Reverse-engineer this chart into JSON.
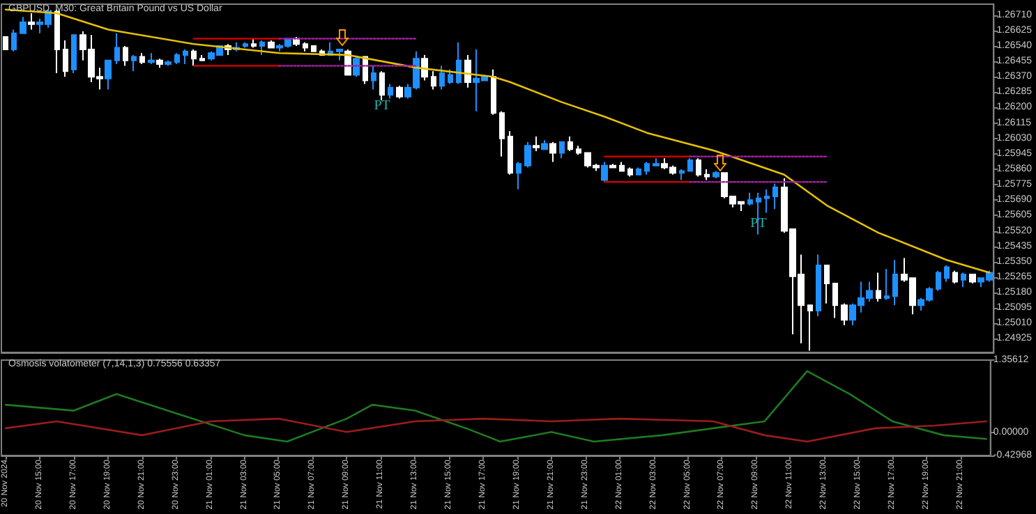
{
  "chart_data": [
    {
      "type": "candlestick",
      "title": "GBPUSD, M30: Great Britain Pound vs US Dollar",
      "x": [
        "2024-11-20T13:00",
        "2024-11-20T13:30",
        "2024-11-20T14:00",
        "2024-11-20T14:30",
        "2024-11-20T15:00",
        "2024-11-20T15:30",
        "2024-11-20T16:00",
        "2024-11-20T16:30",
        "2024-11-20T17:00",
        "2024-11-20T17:30",
        "2024-11-20T18:00",
        "2024-11-20T18:30",
        "2024-11-20T19:00",
        "2024-11-20T19:30",
        "2024-11-20T20:00",
        "2024-11-20T20:30",
        "2024-11-20T21:00",
        "2024-11-20T21:30",
        "2024-11-20T22:00",
        "2024-11-20T22:30",
        "2024-11-20T23:00",
        "2024-11-20T23:30",
        "2024-11-21T00:00",
        "2024-11-21T00:30",
        "2024-11-21T01:00",
        "2024-11-21T01:30",
        "2024-11-21T02:00",
        "2024-11-21T02:30",
        "2024-11-21T03:00",
        "2024-11-21T03:30",
        "2024-11-21T04:00",
        "2024-11-21T04:30",
        "2024-11-21T05:00",
        "2024-11-21T05:30",
        "2024-11-21T06:00",
        "2024-11-21T06:30",
        "2024-11-21T07:00",
        "2024-11-21T07:30",
        "2024-11-21T08:00",
        "2024-11-21T08:30",
        "2024-11-21T09:00",
        "2024-11-21T09:30",
        "2024-11-21T10:00",
        "2024-11-21T10:30",
        "2024-11-21T11:00",
        "2024-11-21T11:30",
        "2024-11-21T12:00",
        "2024-11-21T12:30",
        "2024-11-21T13:00",
        "2024-11-21T13:30",
        "2024-11-21T14:00",
        "2024-11-21T14:30",
        "2024-11-21T15:00",
        "2024-11-21T15:30",
        "2024-11-21T16:00",
        "2024-11-21T16:30",
        "2024-11-21T17:00",
        "2024-11-21T17:30",
        "2024-11-21T18:00",
        "2024-11-21T18:30",
        "2024-11-21T19:00",
        "2024-11-21T19:30",
        "2024-11-21T20:00",
        "2024-11-21T20:30",
        "2024-11-21T21:00",
        "2024-11-21T21:30",
        "2024-11-21T22:00",
        "2024-11-21T22:30",
        "2024-11-21T23:00",
        "2024-11-21T23:30",
        "2024-11-22T00:00",
        "2024-11-22T00:30",
        "2024-11-22T01:00",
        "2024-11-22T01:30",
        "2024-11-22T02:00",
        "2024-11-22T02:30",
        "2024-11-22T03:00",
        "2024-11-22T03:30",
        "2024-11-22T04:00",
        "2024-11-22T04:30",
        "2024-11-22T05:00",
        "2024-11-22T05:30",
        "2024-11-22T06:00",
        "2024-11-22T06:30",
        "2024-11-22T07:00",
        "2024-11-22T07:30",
        "2024-11-22T08:00",
        "2024-11-22T08:30",
        "2024-11-22T09:00",
        "2024-11-22T09:30",
        "2024-11-22T10:00",
        "2024-11-22T10:30",
        "2024-11-22T11:00",
        "2024-11-22T11:30",
        "2024-11-22T12:00",
        "2024-11-22T12:30",
        "2024-11-22T13:00",
        "2024-11-22T13:30",
        "2024-11-22T14:00",
        "2024-11-22T14:30",
        "2024-11-22T15:00",
        "2024-11-22T15:30",
        "2024-11-22T16:00",
        "2024-11-22T16:30",
        "2024-11-22T17:00",
        "2024-11-22T17:30",
        "2024-11-22T18:00",
        "2024-11-22T18:30",
        "2024-11-22T19:00",
        "2024-11-22T19:30",
        "2024-11-22T20:00",
        "2024-11-22T20:30",
        "2024-11-22T21:00",
        "2024-11-22T21:30",
        "2024-11-22T22:00",
        "2024-11-22T22:30"
      ],
      "ohlc": [
        [
          1.2659,
          1.2659,
          1.2652,
          1.2652
        ],
        [
          1.2652,
          1.2663,
          1.2651,
          1.2661
        ],
        [
          1.2661,
          1.267,
          1.2661,
          1.2667
        ],
        [
          1.2667,
          1.2672,
          1.2663,
          1.2666
        ],
        [
          1.2666,
          1.2669,
          1.2661,
          1.2667
        ],
        [
          1.2666,
          1.2674,
          1.2664,
          1.2673
        ],
        [
          1.2673,
          1.2674,
          1.2639,
          1.2652
        ],
        [
          1.2652,
          1.2657,
          1.2637,
          1.264
        ],
        [
          1.2641,
          1.266,
          1.2639,
          1.266
        ],
        [
          1.266,
          1.2662,
          1.2646,
          1.2652
        ],
        [
          1.2652,
          1.266,
          1.2634,
          1.2637
        ],
        [
          1.2637,
          1.2642,
          1.263,
          1.2636
        ],
        [
          1.2636,
          1.2646,
          1.263,
          1.2646
        ],
        [
          1.2646,
          1.2661,
          1.2644,
          1.2653
        ],
        [
          1.2653,
          1.2654,
          1.2643,
          1.2646
        ],
        [
          1.2646,
          1.2649,
          1.264,
          1.2648
        ],
        [
          1.2648,
          1.265,
          1.2644,
          1.2645
        ],
        [
          1.2645,
          1.265,
          1.2644,
          1.2646
        ],
        [
          1.2646,
          1.2647,
          1.2642,
          1.2644
        ],
        [
          1.2644,
          1.2646,
          1.2643,
          1.2645
        ],
        [
          1.2645,
          1.265,
          1.2644,
          1.2649
        ],
        [
          1.2649,
          1.2652,
          1.2644,
          1.2651
        ],
        [
          1.2651,
          1.2652,
          1.2643,
          1.2647
        ],
        [
          1.2647,
          1.2649,
          1.2646,
          1.2646
        ],
        [
          1.2647,
          1.2651,
          1.2646,
          1.265
        ],
        [
          1.2649,
          1.2654,
          1.2649,
          1.2654
        ],
        [
          1.2654,
          1.2655,
          1.2649,
          1.2652
        ],
        [
          1.2652,
          1.2656,
          1.2651,
          1.2653
        ],
        [
          1.2654,
          1.2656,
          1.2653,
          1.2655
        ],
        [
          1.2655,
          1.2658,
          1.2653,
          1.2654
        ],
        [
          1.2654,
          1.2657,
          1.2649,
          1.2656
        ],
        [
          1.2656,
          1.2657,
          1.2653,
          1.2653
        ],
        [
          1.2653,
          1.2655,
          1.2651,
          1.2654
        ],
        [
          1.2654,
          1.2658,
          1.2653,
          1.2658
        ],
        [
          1.2658,
          1.2659,
          1.2654,
          1.2655
        ],
        [
          1.2655,
          1.2656,
          1.2651,
          1.2653
        ],
        [
          1.2654,
          1.2654,
          1.2651,
          1.2651
        ],
        [
          1.2651,
          1.2652,
          1.2649,
          1.2649
        ],
        [
          1.2649,
          1.2656,
          1.2649,
          1.2651
        ],
        [
          1.2651,
          1.2652,
          1.2646,
          1.2652
        ],
        [
          1.2651,
          1.2652,
          1.2638,
          1.2638
        ],
        [
          1.2638,
          1.2648,
          1.2637,
          1.2647
        ],
        [
          1.2648,
          1.2648,
          1.2633,
          1.2635
        ],
        [
          1.2635,
          1.2643,
          1.263,
          1.2639
        ],
        [
          1.2639,
          1.264,
          1.2624,
          1.2627
        ],
        [
          1.2627,
          1.2633,
          1.2625,
          1.2631
        ],
        [
          1.2631,
          1.2632,
          1.2625,
          1.2626
        ],
        [
          1.2626,
          1.2633,
          1.2625,
          1.2631
        ],
        [
          1.2631,
          1.2651,
          1.263,
          1.2647
        ],
        [
          1.2647,
          1.2649,
          1.2635,
          1.2637
        ],
        [
          1.2637,
          1.264,
          1.263,
          1.2632
        ],
        [
          1.2632,
          1.2643,
          1.263,
          1.2639
        ],
        [
          1.2634,
          1.2641,
          1.2633,
          1.2638
        ],
        [
          1.2634,
          1.2656,
          1.2633,
          1.2646
        ],
        [
          1.2646,
          1.2649,
          1.2631,
          1.2634
        ],
        [
          1.2634,
          1.2652,
          1.2618,
          1.2636
        ],
        [
          1.2635,
          1.2638,
          1.2635,
          1.2637
        ],
        [
          1.2637,
          1.2641,
          1.2616,
          1.2617
        ],
        [
          1.2617,
          1.2618,
          1.2593,
          1.2603
        ],
        [
          1.2604,
          1.2607,
          1.2583,
          1.2584
        ],
        [
          1.2584,
          1.259,
          1.2575,
          1.2589
        ],
        [
          1.2588,
          1.2601,
          1.2587,
          1.2599
        ],
        [
          1.2599,
          1.2604,
          1.2596,
          1.2598
        ],
        [
          1.2597,
          1.2602,
          1.2597,
          1.26
        ],
        [
          1.26,
          1.2601,
          1.259,
          1.2595
        ],
        [
          1.2595,
          1.2601,
          1.2592,
          1.2601
        ],
        [
          1.2601,
          1.2604,
          1.2596,
          1.2597
        ],
        [
          1.2597,
          1.2599,
          1.2594,
          1.2595
        ],
        [
          1.2595,
          1.2595,
          1.2587,
          1.2588
        ],
        [
          1.2588,
          1.2589,
          1.2585,
          1.2587
        ],
        [
          1.258,
          1.259,
          1.2579,
          1.2588
        ],
        [
          1.2588,
          1.2589,
          1.2587,
          1.2587
        ],
        [
          1.2588,
          1.259,
          1.2585,
          1.2585
        ],
        [
          1.2586,
          1.2587,
          1.2582,
          1.2583
        ],
        [
          1.2583,
          1.2587,
          1.2583,
          1.2586
        ],
        [
          1.2585,
          1.259,
          1.2583,
          1.2589
        ],
        [
          1.2588,
          1.2592,
          1.2588,
          1.2589
        ],
        [
          1.2589,
          1.2592,
          1.2586,
          1.2587
        ],
        [
          1.2587,
          1.2588,
          1.2583,
          1.2584
        ],
        [
          1.2584,
          1.2586,
          1.258,
          1.2585
        ],
        [
          1.2585,
          1.2592,
          1.2585,
          1.2591
        ],
        [
          1.2591,
          1.2592,
          1.2582,
          1.2583
        ],
        [
          1.2583,
          1.2586,
          1.258,
          1.2582
        ],
        [
          1.2582,
          1.2585,
          1.2581,
          1.2584
        ],
        [
          1.2584,
          1.2584,
          1.257,
          1.2571
        ],
        [
          1.2571,
          1.2571,
          1.2565,
          1.2567
        ],
        [
          1.2568,
          1.2568,
          1.2563,
          1.2567
        ],
        [
          1.2567,
          1.2573,
          1.2566,
          1.2569
        ],
        [
          1.2568,
          1.2573,
          1.255,
          1.257
        ],
        [
          1.257,
          1.2575,
          1.2562,
          1.2571
        ],
        [
          1.2571,
          1.2578,
          1.2564,
          1.2576
        ],
        [
          1.2576,
          1.2581,
          1.2551,
          1.2552
        ],
        [
          1.2553,
          1.2553,
          1.2495,
          1.2527
        ],
        [
          1.2528,
          1.2539,
          1.249,
          1.2511
        ],
        [
          1.2511,
          1.2511,
          1.2486,
          1.2508
        ],
        [
          1.2508,
          1.2539,
          1.2505,
          1.2533
        ],
        [
          1.2533,
          1.2533,
          1.2512,
          1.2523
        ],
        [
          1.2523,
          1.2523,
          1.2504,
          1.2511
        ],
        [
          1.2511,
          1.2512,
          1.25,
          1.2503
        ],
        [
          1.2503,
          1.2512,
          1.25,
          1.2511
        ],
        [
          1.2511,
          1.2524,
          1.2507,
          1.2515
        ],
        [
          1.2515,
          1.2524,
          1.2513,
          1.2519
        ],
        [
          1.2519,
          1.2529,
          1.2513,
          1.2515
        ],
        [
          1.2515,
          1.2531,
          1.2514,
          1.2516
        ],
        [
          1.2516,
          1.2536,
          1.2511,
          1.2528
        ],
        [
          1.2528,
          1.2537,
          1.2524,
          1.2525
        ],
        [
          1.2526,
          1.2526,
          1.2506,
          1.2511
        ],
        [
          1.2511,
          1.2515,
          1.2508,
          1.2514
        ],
        [
          1.2514,
          1.2521,
          1.2513,
          1.252
        ],
        [
          1.252,
          1.253,
          1.2519,
          1.2529
        ],
        [
          1.2526,
          1.2533,
          1.2524,
          1.2532
        ],
        [
          1.2529,
          1.253,
          1.2523,
          1.2524
        ],
        [
          1.2525,
          1.2529,
          1.2521,
          1.2528
        ],
        [
          1.2528,
          1.2528,
          1.2523,
          1.2524
        ],
        [
          1.2524,
          1.2526,
          1.2521,
          1.2526
        ],
        [
          1.2525,
          1.253,
          1.2524,
          1.2529
        ]
      ],
      "colors": [
        "#ffffff",
        "#1e90ff",
        "#1e90ff",
        "#ffffff",
        "#1e90ff",
        "#1e90ff",
        "#ffffff",
        "#ffffff",
        "#1e90ff",
        "#ffffff",
        "#ffffff",
        "#ffffff",
        "#1e90ff",
        "#1e90ff",
        "#ffffff",
        "#1e90ff",
        "#ffffff",
        "#1e90ff",
        "#ffffff",
        "#1e90ff",
        "#1e90ff",
        "#1e90ff",
        "#ffffff",
        "#ffffff",
        "#1e90ff",
        "#1e90ff",
        "#ffffff",
        "#1e90ff",
        "#1e90ff",
        "#ffffff",
        "#1e90ff",
        "#ffffff",
        "#1e90ff",
        "#1e90ff",
        "#ffffff",
        "#ffffff",
        "#ffffff",
        "#ffffff",
        "#1e90ff",
        "#1e90ff",
        "#ffffff",
        "#1e90ff",
        "#ffffff",
        "#1e90ff",
        "#ffffff",
        "#1e90ff",
        "#ffffff",
        "#1e90ff",
        "#1e90ff",
        "#ffffff",
        "#ffffff",
        "#1e90ff",
        "#1e90ff",
        "#1e90ff",
        "#ffffff",
        "#1e90ff",
        "#1e90ff",
        "#ffffff",
        "#ffffff",
        "#ffffff",
        "#1e90ff",
        "#1e90ff",
        "#ffffff",
        "#1e90ff",
        "#ffffff",
        "#1e90ff",
        "#ffffff",
        "#ffffff",
        "#ffffff",
        "#ffffff",
        "#1e90ff",
        "#ffffff",
        "#ffffff",
        "#ffffff",
        "#1e90ff",
        "#1e90ff",
        "#1e90ff",
        "#ffffff",
        "#ffffff",
        "#1e90ff",
        "#1e90ff",
        "#ffffff",
        "#ffffff",
        "#1e90ff",
        "#ffffff",
        "#ffffff",
        "#ffffff",
        "#1e90ff",
        "#1e90ff",
        "#1e90ff",
        "#1e90ff",
        "#ffffff",
        "#ffffff",
        "#ffffff",
        "#ffffff",
        "#1e90ff",
        "#ffffff",
        "#ffffff",
        "#ffffff",
        "#1e90ff",
        "#1e90ff",
        "#1e90ff",
        "#ffffff",
        "#1e90ff",
        "#1e90ff",
        "#ffffff",
        "#ffffff",
        "#1e90ff",
        "#1e90ff",
        "#1e90ff",
        "#1e90ff",
        "#ffffff",
        "#1e90ff",
        "#ffffff",
        "#1e90ff",
        "#1e90ff"
      ],
      "series": [
        {
          "type": "line",
          "color": "#e6c000",
          "x": [
            "2024-11-20T13:00",
            "2024-11-20T16:00",
            "2024-11-20T19:00",
            "2024-11-21T00:00",
            "2024-11-21T05:00",
            "2024-11-21T09:00",
            "2024-11-21T13:00",
            "2024-11-21T17:30",
            "2024-11-21T18:30",
            "2024-11-21T21:30",
            "2024-11-22T00:00",
            "2024-11-22T02:30",
            "2024-11-22T06:30",
            "2024-11-22T10:30",
            "2024-11-22T13:00",
            "2024-11-22T16:00",
            "2024-11-22T20:00",
            "2024-11-22T22:30"
          ],
          "values": [
            1.2674,
            1.2672,
            1.2663,
            1.2655,
            1.265,
            1.2649,
            1.2642,
            1.2637,
            1.2634,
            1.2623,
            1.2615,
            1.2606,
            1.2596,
            1.2583,
            1.2566,
            1.2551,
            1.2536,
            1.2529
          ]
        },
        {
          "type": "line",
          "color": "#cc0000",
          "x": [
            "2024-11-21T00:00",
            "2024-11-21T05:00"
          ],
          "values": [
            1.2658,
            1.2658
          ]
        },
        {
          "type": "line",
          "color": "#cc0000",
          "x": [
            "2024-11-21T00:00",
            "2024-11-21T05:00"
          ],
          "values": [
            1.2643,
            1.2643
          ]
        },
        {
          "type": "line",
          "color": "#a020a0",
          "line_style": "dotted",
          "x": [
            "2024-11-21T05:00",
            "2024-11-21T13:00"
          ],
          "values": [
            1.2658,
            1.2658
          ]
        },
        {
          "type": "line",
          "color": "#a020a0",
          "line_style": "dotted",
          "x": [
            "2024-11-21T05:00",
            "2024-11-21T13:00"
          ],
          "values": [
            1.2643,
            1.2643
          ]
        },
        {
          "type": "line",
          "color": "#cc0000",
          "x": [
            "2024-11-22T00:00",
            "2024-11-22T05:00"
          ],
          "values": [
            1.2593,
            1.2593
          ]
        },
        {
          "type": "line",
          "color": "#cc0000",
          "x": [
            "2024-11-22T00:00",
            "2024-11-22T05:00"
          ],
          "values": [
            1.2579,
            1.2579
          ]
        },
        {
          "type": "line",
          "color": "#a020a0",
          "line_style": "dotted",
          "x": [
            "2024-11-22T05:00",
            "2024-11-22T13:00"
          ],
          "values": [
            1.2593,
            1.2593
          ]
        },
        {
          "type": "line",
          "color": "#a020a0",
          "line_style": "dotted",
          "x": [
            "2024-11-22T05:00",
            "2024-11-22T13:00"
          ],
          "values": [
            1.2579,
            1.2579
          ]
        }
      ],
      "annotations": [
        {
          "text": "PT",
          "x": "2024-11-21T11:00",
          "y": 1.2621
        },
        {
          "text": "PT",
          "x": "2024-11-22T09:00",
          "y": 1.2556
        }
      ],
      "xlim": [
        "2024-11-20T12:45",
        "2024-11-22T22:45"
      ],
      "ylim": [
        1.2485,
        1.2677
      ],
      "yticks": [
        {
          "value": 1.2671,
          "label": "1.26710"
        },
        {
          "value": 1.26625,
          "label": "1.26625"
        },
        {
          "value": 1.2654,
          "label": "1.26540"
        },
        {
          "value": 1.26455,
          "label": "1.26455"
        },
        {
          "value": 1.2637,
          "label": "1.26370"
        },
        {
          "value": 1.26285,
          "label": "1.26285"
        },
        {
          "value": 1.262,
          "label": "1.26200"
        },
        {
          "value": 1.26115,
          "label": "1.26115"
        },
        {
          "value": 1.2603,
          "label": "1.26030"
        },
        {
          "value": 1.25945,
          "label": "1.25945"
        },
        {
          "value": 1.2586,
          "label": "1.25860"
        },
        {
          "value": 1.25775,
          "label": "1.25775"
        },
        {
          "value": 1.2569,
          "label": "1.25690"
        },
        {
          "value": 1.25605,
          "label": "1.25605"
        },
        {
          "value": 1.2552,
          "label": "1.25520"
        },
        {
          "value": 1.25435,
          "label": "1.25435"
        },
        {
          "value": 1.2535,
          "label": "1.25350"
        },
        {
          "value": 1.25265,
          "label": "1.25265"
        },
        {
          "value": 1.2518,
          "label": "1.25180"
        },
        {
          "value": 1.25095,
          "label": "1.25095"
        },
        {
          "value": 1.2501,
          "label": "1.25010"
        },
        {
          "value": 1.24925,
          "label": "1.24925"
        }
      ],
      "tick_labels": "y",
      "grid": false,
      "marker": "none"
    },
    {
      "type": "line",
      "title": "Osmosis volatometer (7,14,1,3) 0.75556 0.63357",
      "series": [
        {
          "color": "#1f7a1f",
          "x": [
            "2024-11-20T13:00",
            "2024-11-20T17:00",
            "2024-11-20T19:30",
            "2024-11-20T22:30",
            "2024-11-21T03:00",
            "2024-11-21T05:30",
            "2024-11-21T09:00",
            "2024-11-21T10:30",
            "2024-11-21T13:00",
            "2024-11-21T16:00",
            "2024-11-21T18:00",
            "2024-11-21T21:00",
            "2024-11-21T23:30",
            "2024-11-22T03:30",
            "2024-11-22T06:30",
            "2024-11-22T09:30",
            "2024-11-22T12:00",
            "2024-11-22T14:30",
            "2024-11-22T17:00",
            "2024-11-22T20:00",
            "2024-11-22T22:30"
          ],
          "values": [
            0.52,
            0.41,
            0.72,
            0.41,
            -0.05,
            -0.17,
            0.26,
            0.52,
            0.41,
            0.08,
            -0.17,
            0.01,
            -0.17,
            -0.05,
            0.08,
            0.21,
            1.15,
            0.72,
            0.21,
            -0.05,
            -0.12
          ]
        },
        {
          "color": "#9b1c1c",
          "x": [
            "2024-11-20T13:00",
            "2024-11-20T16:00",
            "2024-11-20T21:00",
            "2024-11-21T01:00",
            "2024-11-21T05:00",
            "2024-11-21T09:00",
            "2024-11-21T13:00",
            "2024-11-21T17:00",
            "2024-11-21T21:00",
            "2024-11-22T01:00",
            "2024-11-22T06:30",
            "2024-11-22T09:30",
            "2024-11-22T12:00",
            "2024-11-22T16:00",
            "2024-11-22T19:30",
            "2024-11-22T22:30"
          ],
          "values": [
            0.08,
            0.21,
            -0.05,
            0.21,
            0.26,
            0.01,
            0.21,
            0.26,
            0.21,
            0.26,
            0.21,
            -0.05,
            -0.17,
            0.08,
            0.13,
            0.21
          ]
        }
      ],
      "xlim": [
        "2024-11-20T12:45",
        "2024-11-22T22:45"
      ],
      "ylim": [
        -0.42968,
        1.35612
      ],
      "yticks": [
        {
          "value": 1.35612,
          "label": "1.35612"
        },
        {
          "value": 0,
          "label": "0.00000"
        },
        {
          "value": -0.42968,
          "label": "-0.42968"
        }
      ],
      "xticks": [
        {
          "value": "2024-11-20T13:00",
          "label": "20 Nov 2024"
        },
        {
          "value": "2024-11-20T15:00",
          "label": "20 Nov 15:00"
        },
        {
          "value": "2024-11-20T17:00",
          "label": "20 Nov 17:00"
        },
        {
          "value": "2024-11-20T19:00",
          "label": "20 Nov 19:00"
        },
        {
          "value": "2024-11-20T21:00",
          "label": "20 Nov 21:00"
        },
        {
          "value": "2024-11-20T23:00",
          "label": "20 Nov 23:00"
        },
        {
          "value": "2024-11-21T01:00",
          "label": "21 Nov 01:00"
        },
        {
          "value": "2024-11-21T03:00",
          "label": "21 Nov 03:00"
        },
        {
          "value": "2024-11-21T05:00",
          "label": "21 Nov 05:00"
        },
        {
          "value": "2024-11-21T07:00",
          "label": "21 Nov 07:00"
        },
        {
          "value": "2024-11-21T09:00",
          "label": "21 Nov 09:00"
        },
        {
          "value": "2024-11-21T11:00",
          "label": "21 Nov 11:00"
        },
        {
          "value": "2024-11-21T13:00",
          "label": "21 Nov 13:00"
        },
        {
          "value": "2024-11-21T15:00",
          "label": "21 Nov 15:00"
        },
        {
          "value": "2024-11-21T17:00",
          "label": "21 Nov 17:00"
        },
        {
          "value": "2024-11-21T19:00",
          "label": "21 Nov 19:00"
        },
        {
          "value": "2024-11-21T21:00",
          "label": "21 Nov 21:00"
        },
        {
          "value": "2024-11-21T23:00",
          "label": "21 Nov 23:00"
        },
        {
          "value": "2024-11-22T01:00",
          "label": "22 Nov 01:00"
        },
        {
          "value": "2024-11-22T03:00",
          "label": "22 Nov 03:00"
        },
        {
          "value": "2024-11-22T05:00",
          "label": "22 Nov 05:00"
        },
        {
          "value": "2024-11-22T07:00",
          "label": "22 Nov 07:00"
        },
        {
          "value": "2024-11-22T09:00",
          "label": "22 Nov 09:00"
        },
        {
          "value": "2024-11-22T11:00",
          "label": "22 Nov 11:00"
        },
        {
          "value": "2024-11-22T13:00",
          "label": "22 Nov 13:00"
        },
        {
          "value": "2024-11-22T15:00",
          "label": "22 Nov 15:00"
        },
        {
          "value": "2024-11-22T17:00",
          "label": "22 Nov 17:00"
        },
        {
          "value": "2024-11-22T19:00",
          "label": "22 Nov 19:00"
        },
        {
          "value": "2024-11-22T21:00",
          "label": "22 Nov 21:00"
        }
      ],
      "grid": false,
      "marker": "none"
    }
  ]
}
